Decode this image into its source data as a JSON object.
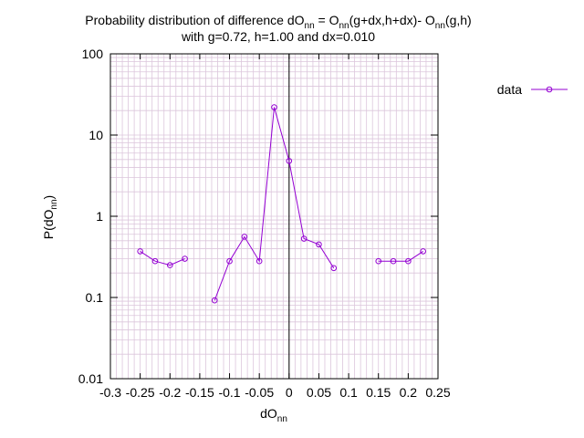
{
  "chart_data": {
    "type": "line",
    "title_line1_prefix": "Probability distribution of difference dO",
    "title_line1_sub1": "nn",
    "title_line1_mid1": " = O",
    "title_line1_sub2": "nn",
    "title_line1_mid2": "(g+dx,h+dx)- O",
    "title_line1_sub3": "nn",
    "title_line1_suffix": "(g,h)",
    "title_line2": "with g=0.72, h=1.00 and dx=0.010",
    "xlabel_main": "dO",
    "xlabel_sub": "nn",
    "ylabel_main": "P(dO",
    "ylabel_sub": "nn",
    "ylabel_close": ")",
    "xlim": [
      -0.3,
      0.25
    ],
    "ylim": [
      0.01,
      100
    ],
    "yscale": "log",
    "grid": true,
    "legend_position": "top-right",
    "x_ticks": [
      -0.3,
      -0.25,
      -0.2,
      -0.15,
      -0.1,
      -0.05,
      0,
      0.05,
      0.1,
      0.15,
      0.2,
      0.25
    ],
    "x_tick_labels": [
      "-0.3",
      "-0.25",
      "-0.2",
      "-0.15",
      "-0.1",
      "-0.05",
      "0",
      "0.05",
      "0.1",
      "0.15",
      "0.2",
      "0.25"
    ],
    "y_ticks": [
      0.01,
      0.1,
      1,
      10,
      100
    ],
    "y_tick_labels": [
      "0.01",
      "0.1",
      "1",
      "10",
      "100"
    ],
    "series": [
      {
        "name": "data",
        "color": "#9400d3",
        "segments": [
          [
            [
              -0.25,
              0.37
            ],
            [
              -0.225,
              0.28
            ],
            [
              -0.2,
              0.25
            ],
            [
              -0.175,
              0.3
            ]
          ],
          [
            [
              -0.125,
              0.092
            ],
            [
              -0.1,
              0.28
            ],
            [
              -0.075,
              0.56
            ],
            [
              -0.05,
              0.28
            ],
            [
              -0.025,
              22
            ],
            [
              0.0,
              4.8
            ],
            [
              0.025,
              0.53
            ],
            [
              0.05,
              0.45
            ],
            [
              0.075,
              0.23
            ]
          ],
          [
            [
              0.15,
              0.28
            ],
            [
              0.175,
              0.28
            ],
            [
              0.2,
              0.28
            ],
            [
              0.225,
              0.37
            ]
          ]
        ]
      }
    ]
  }
}
